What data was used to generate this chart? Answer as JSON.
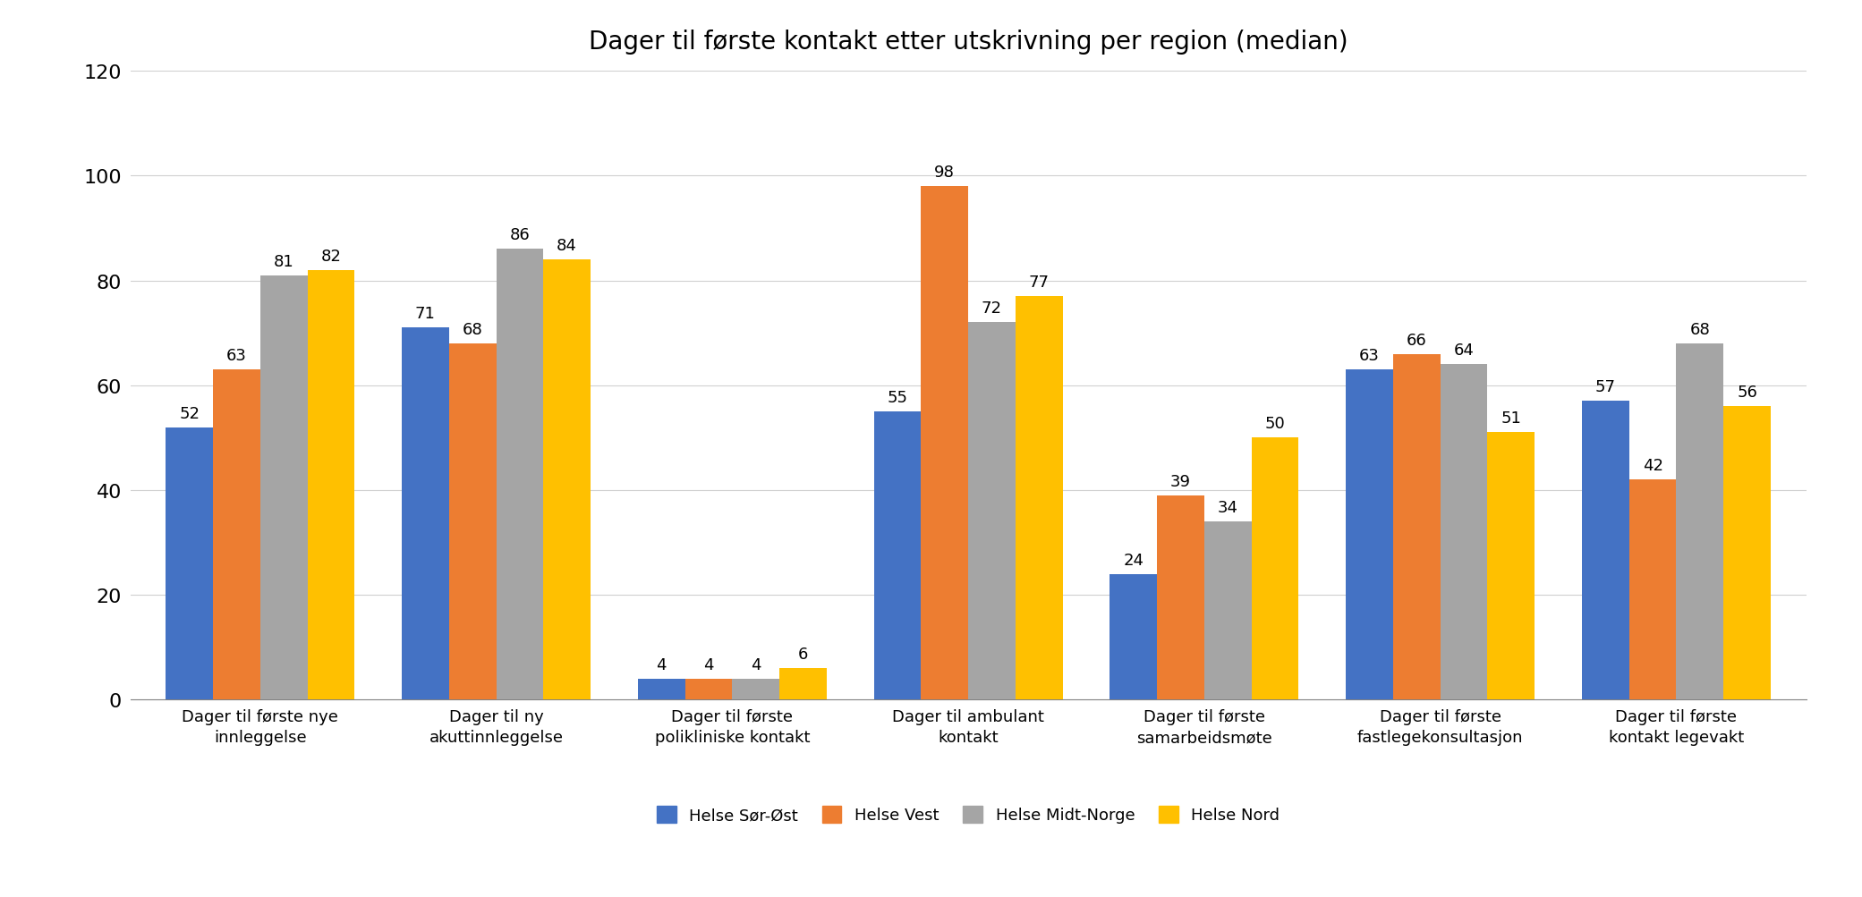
{
  "title": "Dager til første kontakt etter utskrivning per region (median)",
  "categories": [
    "Dager til første nye\ninnleggelse",
    "Dager til ny\nakuttinnleggelse",
    "Dager til første\npolikliniske kontakt",
    "Dager til ambulant\nkontakt",
    "Dager til første\nsamarbeidsmøte",
    "Dager til første\nfastlegekonsultasjon",
    "Dager til første\nkontakt legevakt"
  ],
  "series": {
    "Helse Sør-Øst": [
      52,
      71,
      4,
      55,
      24,
      63,
      57
    ],
    "Helse Vest": [
      63,
      68,
      4,
      98,
      39,
      66,
      42
    ],
    "Helse Midt-Norge": [
      81,
      86,
      4,
      72,
      34,
      64,
      68
    ],
    "Helse Nord": [
      82,
      84,
      6,
      77,
      50,
      51,
      56
    ]
  },
  "colors": {
    "Helse Sør-Øst": "#4472C4",
    "Helse Vest": "#ED7D31",
    "Helse Midt-Norge": "#A5A5A5",
    "Helse Nord": "#FFC000"
  },
  "ylim": [
    0,
    120
  ],
  "yticks": [
    0,
    20,
    40,
    60,
    80,
    100,
    120
  ],
  "legend_order": [
    "Helse Sør-Øst",
    "Helse Vest",
    "Helse Midt-Norge",
    "Helse Nord"
  ],
  "bar_width": 0.2,
  "title_fontsize": 20,
  "tick_fontsize": 13,
  "label_fontsize": 13,
  "legend_fontsize": 13,
  "ytick_fontsize": 16
}
